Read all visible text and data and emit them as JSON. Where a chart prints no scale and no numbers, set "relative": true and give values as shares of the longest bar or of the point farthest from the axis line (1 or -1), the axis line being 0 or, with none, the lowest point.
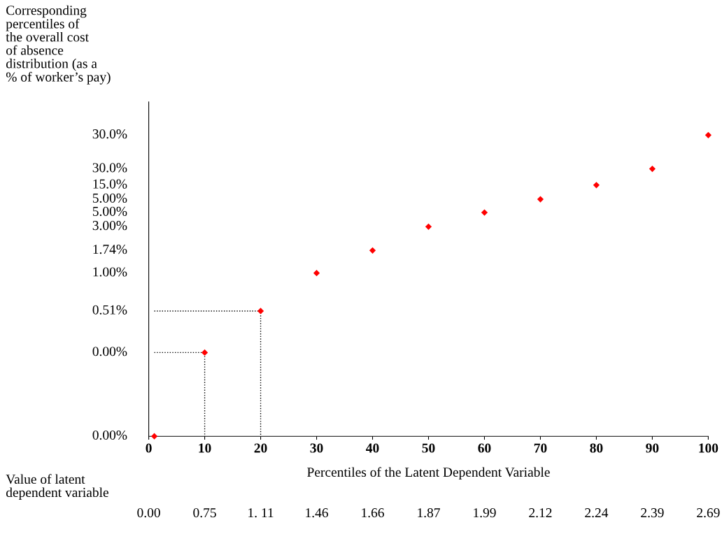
{
  "chart_data": {
    "type": "scatter",
    "relative": true,
    "xlabel": "Percentiles of the Latent Dependent Variable",
    "ylabel": "Corresponding\npercentiles of\nthe overall cost\nof absence\ndistribution (as a\n% of worker’s pay)",
    "xlim": [
      0,
      100
    ],
    "xticks": [
      0,
      10,
      20,
      30,
      40,
      50,
      60,
      70,
      80,
      90,
      100
    ],
    "tick_labels": "x",
    "grid": false,
    "legend": false,
    "marker": "diamond",
    "series": [
      {
        "color": "#ff0000",
        "x": [
          1,
          10,
          20,
          30,
          40,
          50,
          60,
          70,
          80,
          90,
          100
        ],
        "values": [
          0,
          0.278,
          0.416,
          0.542,
          0.617,
          0.696,
          0.743,
          0.787,
          0.834,
          0.888,
          1
        ]
      },
      {
        "type": "line",
        "marker": "none",
        "color": "#000000",
        "line_style": "dotted",
        "x": [
          1,
          10,
          10
        ],
        "values": [
          0.278,
          0.278,
          0
        ]
      },
      {
        "type": "line",
        "marker": "none",
        "color": "#000000",
        "line_style": "dotted",
        "x": [
          1,
          20,
          20
        ],
        "values": [
          0.416,
          0.416,
          0
        ]
      }
    ],
    "annotations": [
      "30.0%",
      "30.0%",
      "15.0%",
      "5.00%",
      "5.00%",
      "3.00%",
      "1.74%",
      "1.00%",
      "0.51%",
      "0.00%",
      "0.00%",
      "Value of latent\ndependent variable",
      "0.00",
      "0.75",
      "1. 11",
      "1.46",
      "1.66",
      "1.87",
      "1.99",
      "2.12",
      "2.24",
      "2.39",
      "2.69"
    ]
  }
}
